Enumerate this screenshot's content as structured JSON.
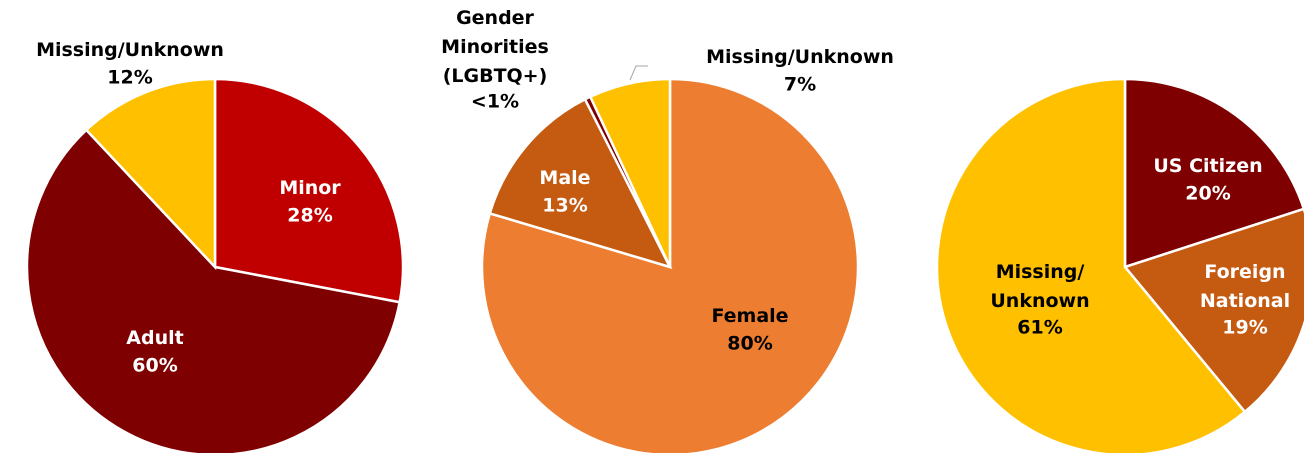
{
  "chart_data": [
    {
      "type": "pie",
      "categories": [
        "Minor",
        "Adult",
        "Missing/Unknown"
      ],
      "values": [
        28,
        60,
        12
      ],
      "value_labels": [
        "28%",
        "60%",
        "12%"
      ],
      "colors": [
        "#c00000",
        "#7f0000",
        "#ffc000"
      ]
    },
    {
      "type": "pie",
      "categories": [
        "Female",
        "Male",
        "Gender\nMinorities\n(LGBTQ+)",
        "Missing/Unknown"
      ],
      "values": [
        80,
        13,
        0.5,
        7
      ],
      "value_labels": [
        "80%",
        "13%",
        "<1%",
        "7%"
      ],
      "colors": [
        "#ed7d31",
        "#c55a11",
        "#7f0000",
        "#ffc000"
      ]
    },
    {
      "type": "pie",
      "categories": [
        "US Citizen",
        "Foreign\nNational",
        "Missing/\nUnknown"
      ],
      "values": [
        20,
        19,
        61
      ],
      "value_labels": [
        "20%",
        "19%",
        "61%"
      ],
      "colors": [
        "#7f0000",
        "#c55a11",
        "#ffc000"
      ]
    }
  ]
}
